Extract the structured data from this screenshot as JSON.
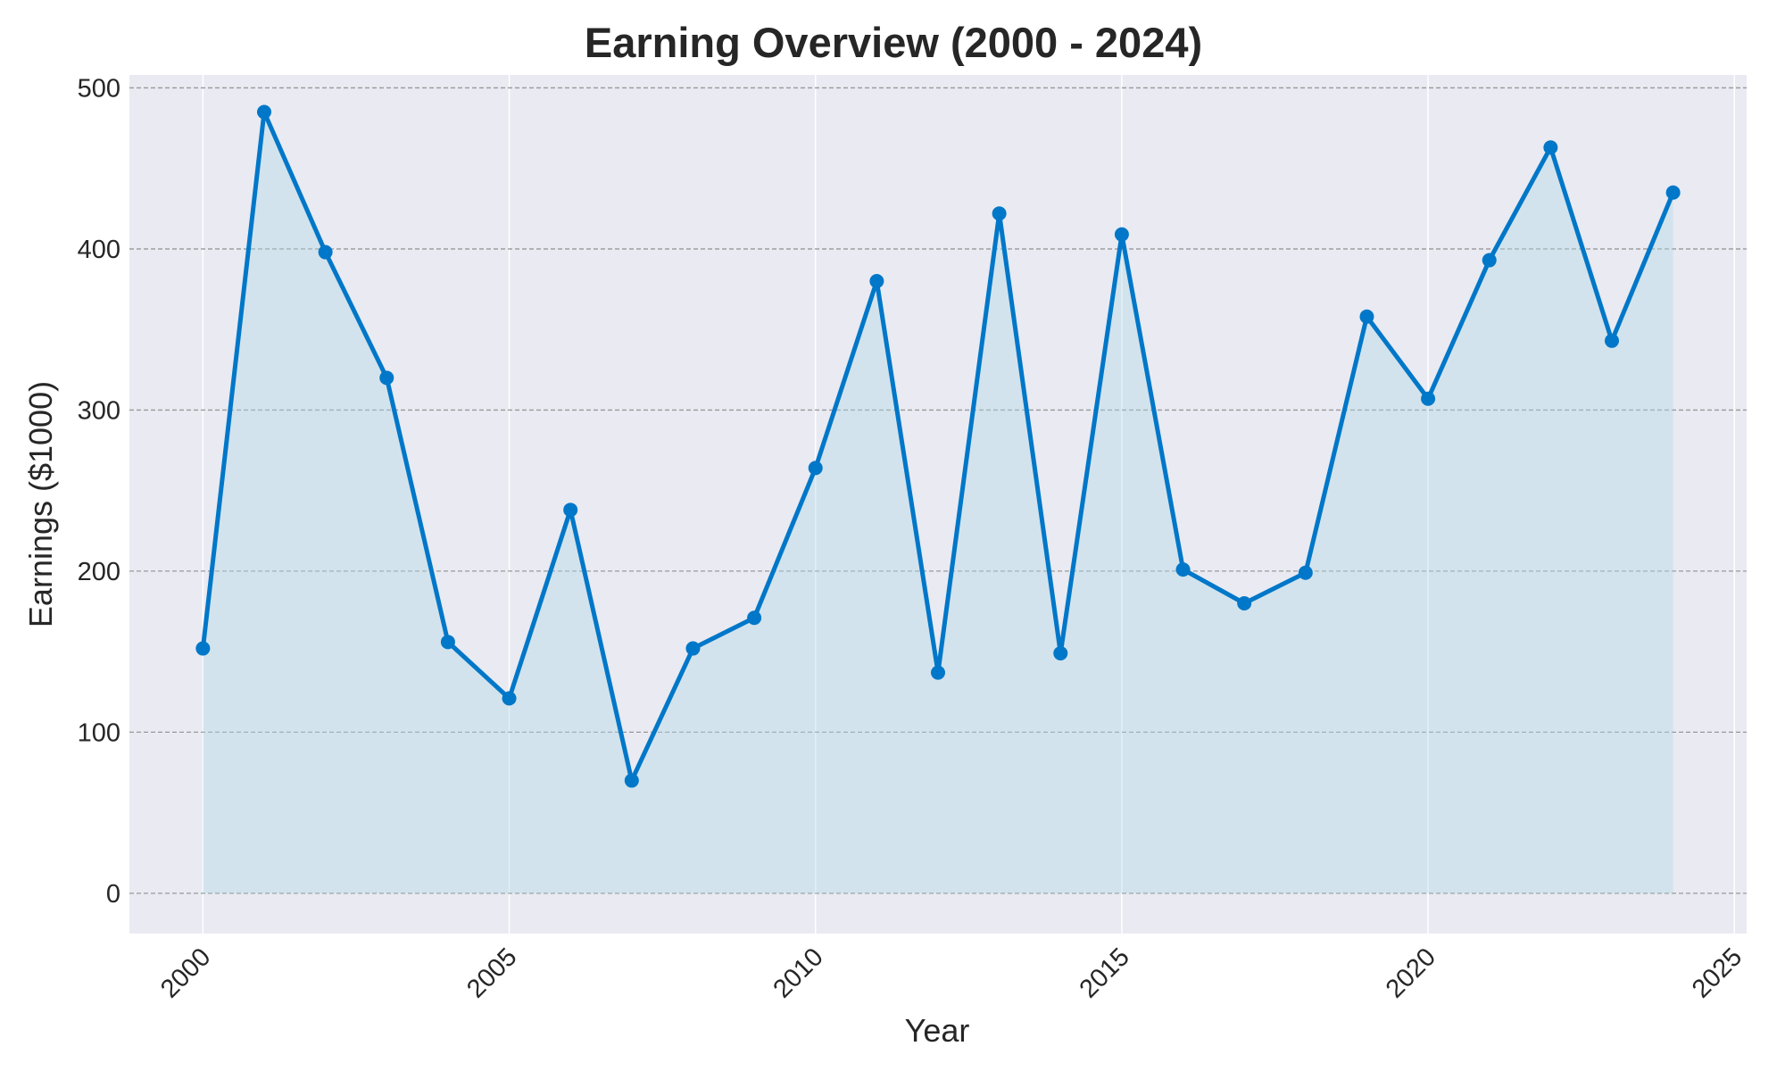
{
  "chart_data": {
    "type": "line",
    "title": "Earning Overview (2000 - 2024)",
    "xlabel": "Year",
    "ylabel": "Earnings ($1000)",
    "x": [
      2000,
      2001,
      2002,
      2003,
      2004,
      2005,
      2006,
      2007,
      2008,
      2009,
      2010,
      2011,
      2012,
      2013,
      2014,
      2015,
      2016,
      2017,
      2018,
      2019,
      2020,
      2021,
      2022,
      2023,
      2024
    ],
    "series": [
      {
        "name": "Earnings",
        "values": [
          152,
          485,
          398,
          320,
          156,
          121,
          238,
          70,
          152,
          171,
          264,
          380,
          137,
          422,
          149,
          409,
          201,
          180,
          199,
          358,
          307,
          393,
          463,
          343,
          435
        ],
        "color": "#0077c8",
        "fill_color": "#add8e6",
        "marker": "circle",
        "area_fill": true
      }
    ],
    "xlim": [
      1998.8,
      2025.2
    ],
    "ylim": [
      -25,
      508
    ],
    "x_ticks": [
      2000,
      2005,
      2010,
      2015,
      2020,
      2025
    ],
    "x_tick_labels": [
      "2000",
      "2005",
      "2010",
      "2015",
      "2020",
      "2025"
    ],
    "y_ticks": [
      0,
      100,
      200,
      300,
      400,
      500
    ],
    "y_tick_labels": [
      "0",
      "100",
      "200",
      "300",
      "400",
      "500"
    ],
    "grid": true,
    "x_tick_rotation_deg": 45,
    "plot_background": "#e9eaf2",
    "grid_color": "#999999",
    "text_color": "#262626"
  }
}
